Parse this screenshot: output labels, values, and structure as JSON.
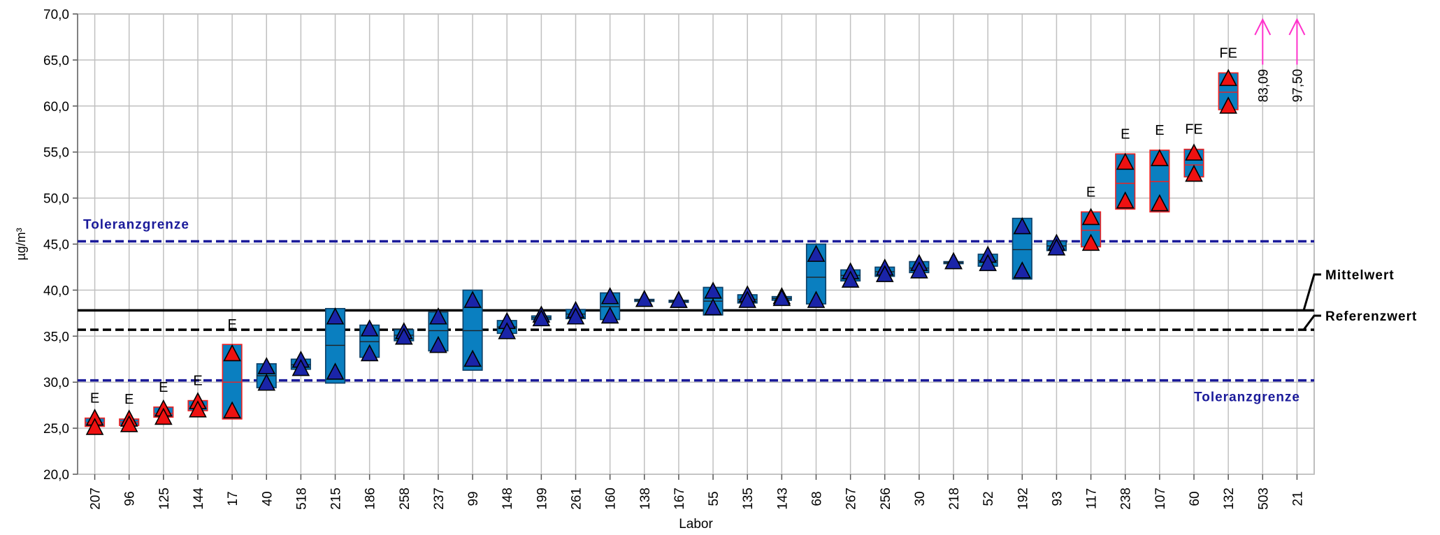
{
  "chart_data": {
    "type": "box",
    "xlabel": "Labor",
    "ylabel": "µg/m³",
    "ylim": [
      20,
      70
    ],
    "yticks": [
      "20,0",
      "25,0",
      "30,0",
      "35,0",
      "40,0",
      "45,0",
      "50,0",
      "55,0",
      "60,0",
      "65,0",
      "70,0"
    ],
    "grid": true,
    "categories": [
      "207",
      "96",
      "125",
      "144",
      "17",
      "40",
      "518",
      "215",
      "186",
      "258",
      "237",
      "99",
      "148",
      "199",
      "261",
      "160",
      "138",
      "167",
      "55",
      "135",
      "143",
      "68",
      "267",
      "256",
      "30",
      "218",
      "52",
      "192",
      "93",
      "117",
      "238",
      "107",
      "60",
      "132",
      "503",
      "21"
    ],
    "labs": [
      {
        "lab": "207",
        "min": 25.2,
        "mean": 25.6,
        "max": 26.1,
        "points": [
          26.0,
          25.0
        ],
        "flag": "E",
        "status": "outlier"
      },
      {
        "lab": "96",
        "min": 25.3,
        "mean": 25.7,
        "max": 26.0,
        "points": [
          25.9,
          25.3
        ],
        "flag": "E",
        "status": "outlier"
      },
      {
        "lab": "125",
        "min": 26.2,
        "mean": 26.6,
        "max": 27.3,
        "points": [
          27.0,
          26.1
        ],
        "flag": "E",
        "status": "outlier"
      },
      {
        "lab": "144",
        "min": 26.9,
        "mean": 27.4,
        "max": 28.0,
        "points": [
          27.8,
          26.9
        ],
        "flag": "E",
        "status": "outlier"
      },
      {
        "lab": "17",
        "min": 26.0,
        "mean": 30.0,
        "max": 34.1,
        "points": [
          33.0,
          26.8
        ],
        "flag": "E",
        "status": "outlier"
      },
      {
        "lab": "40",
        "min": 29.4,
        "mean": 30.7,
        "max": 32.0,
        "points": [
          31.6,
          29.8
        ],
        "flag": "",
        "status": "ok"
      },
      {
        "lab": "518",
        "min": 31.4,
        "mean": 31.9,
        "max": 32.5,
        "points": [
          32.3,
          31.4
        ],
        "flag": "",
        "status": "ok"
      },
      {
        "lab": "215",
        "min": 29.9,
        "mean": 34.0,
        "max": 38.0,
        "points": [
          37.0,
          31.0
        ],
        "flag": "",
        "status": "ok"
      },
      {
        "lab": "186",
        "min": 32.7,
        "mean": 34.4,
        "max": 36.2,
        "points": [
          35.7,
          33.0
        ],
        "flag": "",
        "status": "ok"
      },
      {
        "lab": "258",
        "min": 34.5,
        "mean": 35.1,
        "max": 35.7,
        "points": [
          35.4,
          34.8
        ],
        "flag": "",
        "status": "ok"
      },
      {
        "lab": "237",
        "min": 33.4,
        "mean": 35.6,
        "max": 37.6,
        "points": [
          37.0,
          33.9
        ],
        "flag": "",
        "status": "ok"
      },
      {
        "lab": "99",
        "min": 31.3,
        "mean": 35.6,
        "max": 40.0,
        "points": [
          38.8,
          32.4
        ],
        "flag": "",
        "status": "ok"
      },
      {
        "lab": "148",
        "min": 35.3,
        "mean": 36.0,
        "max": 36.7,
        "points": [
          36.5,
          35.4
        ],
        "flag": "",
        "status": "ok"
      },
      {
        "lab": "199",
        "min": 36.8,
        "mean": 37.0,
        "max": 37.2,
        "points": [
          37.2,
          36.8
        ],
        "flag": "",
        "status": "ok"
      },
      {
        "lab": "261",
        "min": 36.9,
        "mean": 37.4,
        "max": 37.9,
        "points": [
          37.7,
          37.0
        ],
        "flag": "",
        "status": "ok"
      },
      {
        "lab": "160",
        "min": 36.8,
        "mean": 38.2,
        "max": 39.7,
        "points": [
          39.2,
          37.1
        ],
        "flag": "",
        "status": "ok"
      },
      {
        "lab": "138",
        "min": 38.8,
        "mean": 38.9,
        "max": 39.0,
        "points": [
          38.9,
          38.9
        ],
        "flag": "",
        "status": "ok"
      },
      {
        "lab": "167",
        "min": 38.7,
        "mean": 38.8,
        "max": 38.9,
        "points": [
          38.8,
          38.8
        ],
        "flag": "",
        "status": "ok"
      },
      {
        "lab": "55",
        "min": 37.3,
        "mean": 38.8,
        "max": 40.3,
        "points": [
          39.8,
          38.0
        ],
        "flag": "",
        "status": "ok"
      },
      {
        "lab": "135",
        "min": 38.6,
        "mean": 39.0,
        "max": 39.5,
        "points": [
          39.4,
          38.8
        ],
        "flag": "",
        "status": "ok"
      },
      {
        "lab": "143",
        "min": 38.9,
        "mean": 39.1,
        "max": 39.3,
        "points": [
          39.2,
          39.0
        ],
        "flag": "",
        "status": "ok"
      },
      {
        "lab": "68",
        "min": 38.5,
        "mean": 41.4,
        "max": 45.0,
        "points": [
          43.8,
          38.8
        ],
        "flag": "",
        "status": "ok"
      },
      {
        "lab": "267",
        "min": 41.0,
        "mean": 41.6,
        "max": 42.2,
        "points": [
          41.9,
          41.0
        ],
        "flag": "",
        "status": "ok"
      },
      {
        "lab": "256",
        "min": 41.5,
        "mean": 42.0,
        "max": 42.5,
        "points": [
          42.3,
          41.6
        ],
        "flag": "",
        "status": "ok"
      },
      {
        "lab": "30",
        "min": 41.9,
        "mean": 42.4,
        "max": 43.1,
        "points": [
          42.8,
          42.0
        ],
        "flag": "",
        "status": "ok"
      },
      {
        "lab": "218",
        "min": 42.9,
        "mean": 43.0,
        "max": 43.1,
        "points": [
          43.0,
          43.0
        ],
        "flag": "",
        "status": "ok"
      },
      {
        "lab": "52",
        "min": 42.6,
        "mean": 43.2,
        "max": 43.9,
        "points": [
          43.7,
          42.8
        ],
        "flag": "",
        "status": "ok"
      },
      {
        "lab": "192",
        "min": 41.2,
        "mean": 44.4,
        "max": 47.8,
        "points": [
          46.8,
          42.0
        ],
        "flag": "",
        "status": "ok"
      },
      {
        "lab": "93",
        "min": 44.3,
        "mean": 44.8,
        "max": 45.3,
        "points": [
          45.0,
          44.5
        ],
        "flag": "",
        "status": "ok"
      },
      {
        "lab": "117",
        "min": 44.7,
        "mean": 46.5,
        "max": 48.5,
        "points": [
          47.8,
          45.0
        ],
        "flag": "E",
        "status": "outlier"
      },
      {
        "lab": "238",
        "min": 48.8,
        "mean": 51.6,
        "max": 54.8,
        "points": [
          53.8,
          49.6
        ],
        "flag": "E",
        "status": "outlier"
      },
      {
        "lab": "107",
        "min": 48.5,
        "mean": 51.8,
        "max": 55.2,
        "points": [
          54.2,
          49.3
        ],
        "flag": "E",
        "status": "outlier"
      },
      {
        "lab": "60",
        "min": 52.3,
        "mean": 53.6,
        "max": 55.3,
        "points": [
          54.8,
          52.5
        ],
        "flag": "FE",
        "status": "outlier"
      },
      {
        "lab": "132",
        "min": 59.6,
        "mean": 61.5,
        "max": 63.6,
        "points": [
          62.9,
          59.9
        ],
        "flag": "FE",
        "status": "outlier"
      },
      {
        "lab": "503",
        "mean": 83.09,
        "label": "83,09",
        "status": "off-scale"
      },
      {
        "lab": "21",
        "mean": 97.5,
        "label": "97,50",
        "status": "off-scale"
      }
    ],
    "reference_lines": [
      {
        "name": "Toleranzgrenze",
        "value": 45.3,
        "style": "dashed",
        "color": "#1a1a9a",
        "label_position": "top-left"
      },
      {
        "name": "Mittelwert",
        "value": 37.8,
        "style": "solid",
        "color": "#000000",
        "label_position": "right"
      },
      {
        "name": "Referenzwert",
        "value": 35.7,
        "style": "dashed",
        "color": "#000000",
        "label_position": "right"
      },
      {
        "name": "Toleranzgrenze",
        "value": 30.2,
        "style": "dashed",
        "color": "#1a1a9a",
        "label_position": "bottom-right"
      }
    ],
    "colors": {
      "box_ok_fill": "#0a7fc0",
      "box_outlier_fill": "#0a7fc0",
      "box_ok_stroke": "#0d3f66",
      "box_outlier_stroke": "#ee2222",
      "marker_ok": "#1a24a8",
      "marker_outlier": "#ee1111",
      "arrow": "#ff33cc",
      "grid": "#c0c0c0",
      "tolerance": "#1a1a9a"
    }
  }
}
